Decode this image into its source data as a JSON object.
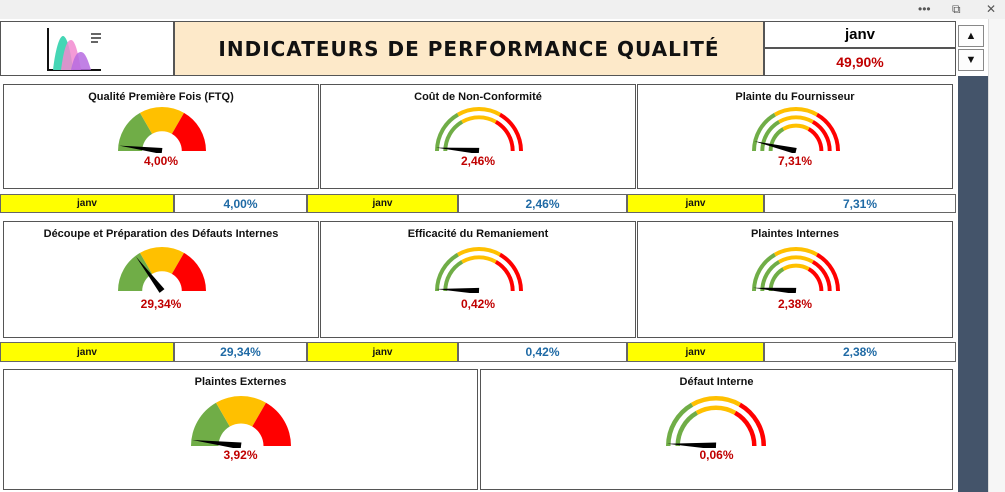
{
  "window": {
    "more_glyph": "•••",
    "restore_glyph": "⧉",
    "close_glyph": "✕"
  },
  "header": {
    "title": "INDICATEURS DE PERFORMANCE QUALITÉ",
    "month": "janv",
    "overall_pct": "49,90%",
    "spin_up": "▲",
    "spin_down": "▼"
  },
  "colors": {
    "green": "#70ad47",
    "yellow": "#ffc000",
    "red": "#ff0000",
    "title_bg": "#fde9c9",
    "month_cell": "#ffff00",
    "sidebar": "#44546a"
  },
  "panels": [
    {
      "title": "Qualité Première Fois (FTQ)",
      "value": "4,00%",
      "style": "solid",
      "level": 0.04
    },
    {
      "title": "Coût de Non-Conformité",
      "value": "2,46%",
      "style": "rings2",
      "level": 0.0246
    },
    {
      "title": "Plainte du Fournisseur",
      "value": "7,31%",
      "style": "rings3",
      "level": 0.0731
    },
    {
      "title": "Découpe et Préparation des Défauts Internes",
      "value": "29,34%",
      "style": "solid",
      "level": 0.2934
    },
    {
      "title": "Efficacité du Remaniement",
      "value": "0,42%",
      "style": "rings2",
      "level": 0.0042
    },
    {
      "title": "Plaintes Internes",
      "value": "2,38%",
      "style": "rings3",
      "level": 0.0238
    },
    {
      "title": "Plaintes Externes",
      "value": "3,92%",
      "style": "solid",
      "level": 0.0392
    },
    {
      "title": "Défaut Interne",
      "value": "0,06%",
      "style": "rings2",
      "level": 0.0006
    }
  ],
  "summary_rows": [
    [
      {
        "month": "janv",
        "value": "4,00%"
      },
      {
        "month": "janv",
        "value": "2,46%"
      },
      {
        "month": "janv",
        "value": "7,31%"
      }
    ],
    [
      {
        "month": "janv",
        "value": "29,34%"
      },
      {
        "month": "janv",
        "value": "0,42%"
      },
      {
        "month": "janv",
        "value": "2,38%"
      }
    ]
  ]
}
